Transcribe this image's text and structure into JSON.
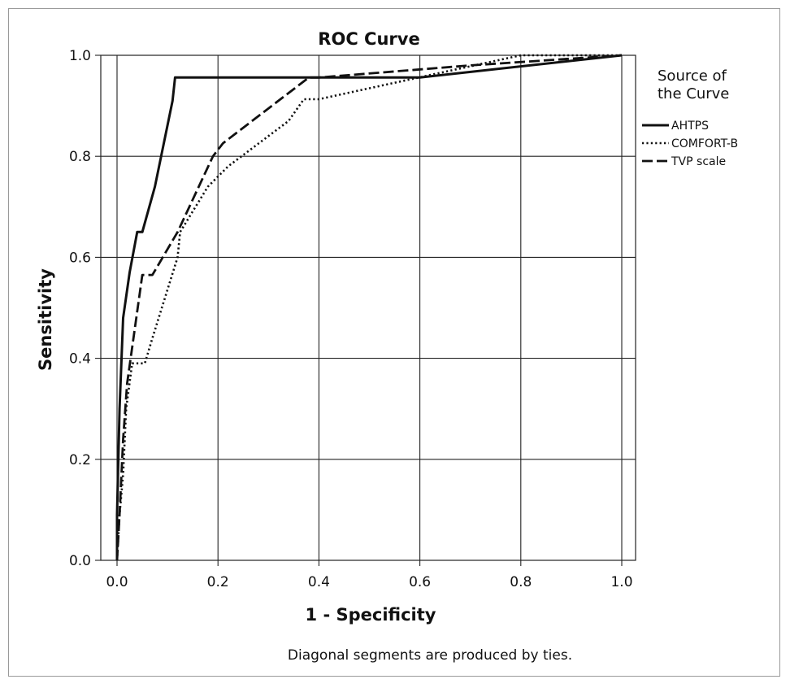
{
  "chart_data": {
    "type": "line",
    "title": "ROC Curve",
    "xlabel": "1 - Specificity",
    "ylabel": "Sensitivity",
    "xlim": [
      0,
      1
    ],
    "ylim": [
      0,
      1
    ],
    "x_ticks": [
      "0.0",
      "0.2",
      "0.4",
      "0.6",
      "0.8",
      "1.0"
    ],
    "y_ticks": [
      "0.0",
      "0.2",
      "0.4",
      "0.6",
      "0.8",
      "1.0"
    ],
    "grid": true,
    "legend_position": "right",
    "legend_title": [
      "Source of",
      "the Curve"
    ],
    "footnote": "Diagonal segments are produced by ties.",
    "series": [
      {
        "name": "AHTPS",
        "style": "solid",
        "points": [
          [
            0,
            0
          ],
          [
            0,
            0.09
          ],
          [
            0.005,
            0.3
          ],
          [
            0.012,
            0.48
          ],
          [
            0.025,
            0.57
          ],
          [
            0.04,
            0.65
          ],
          [
            0.05,
            0.65
          ],
          [
            0.075,
            0.74
          ],
          [
            0.11,
            0.91
          ],
          [
            0.115,
            0.956
          ],
          [
            0.2,
            0.956
          ],
          [
            0.4,
            0.956
          ],
          [
            0.6,
            0.956
          ],
          [
            1.0,
            1.0
          ]
        ]
      },
      {
        "name": "COMFORT-B",
        "style": "dotted",
        "points": [
          [
            0,
            0
          ],
          [
            0.005,
            0.09
          ],
          [
            0.012,
            0.17
          ],
          [
            0.018,
            0.3
          ],
          [
            0.03,
            0.39
          ],
          [
            0.055,
            0.39
          ],
          [
            0.07,
            0.44
          ],
          [
            0.12,
            0.6
          ],
          [
            0.125,
            0.65
          ],
          [
            0.18,
            0.74
          ],
          [
            0.22,
            0.78
          ],
          [
            0.34,
            0.87
          ],
          [
            0.37,
            0.913
          ],
          [
            0.4,
            0.913
          ],
          [
            0.8,
            1.0
          ],
          [
            1.0,
            1.0
          ]
        ]
      },
      {
        "name": "TVP scale",
        "style": "dashed",
        "points": [
          [
            0,
            0
          ],
          [
            0.005,
            0.09
          ],
          [
            0.012,
            0.24
          ],
          [
            0.02,
            0.35
          ],
          [
            0.05,
            0.565
          ],
          [
            0.07,
            0.565
          ],
          [
            0.12,
            0.65
          ],
          [
            0.19,
            0.8
          ],
          [
            0.21,
            0.826
          ],
          [
            0.38,
            0.956
          ],
          [
            0.4,
            0.956
          ],
          [
            0.7,
            0.98
          ],
          [
            1.0,
            1.0
          ]
        ]
      }
    ]
  }
}
